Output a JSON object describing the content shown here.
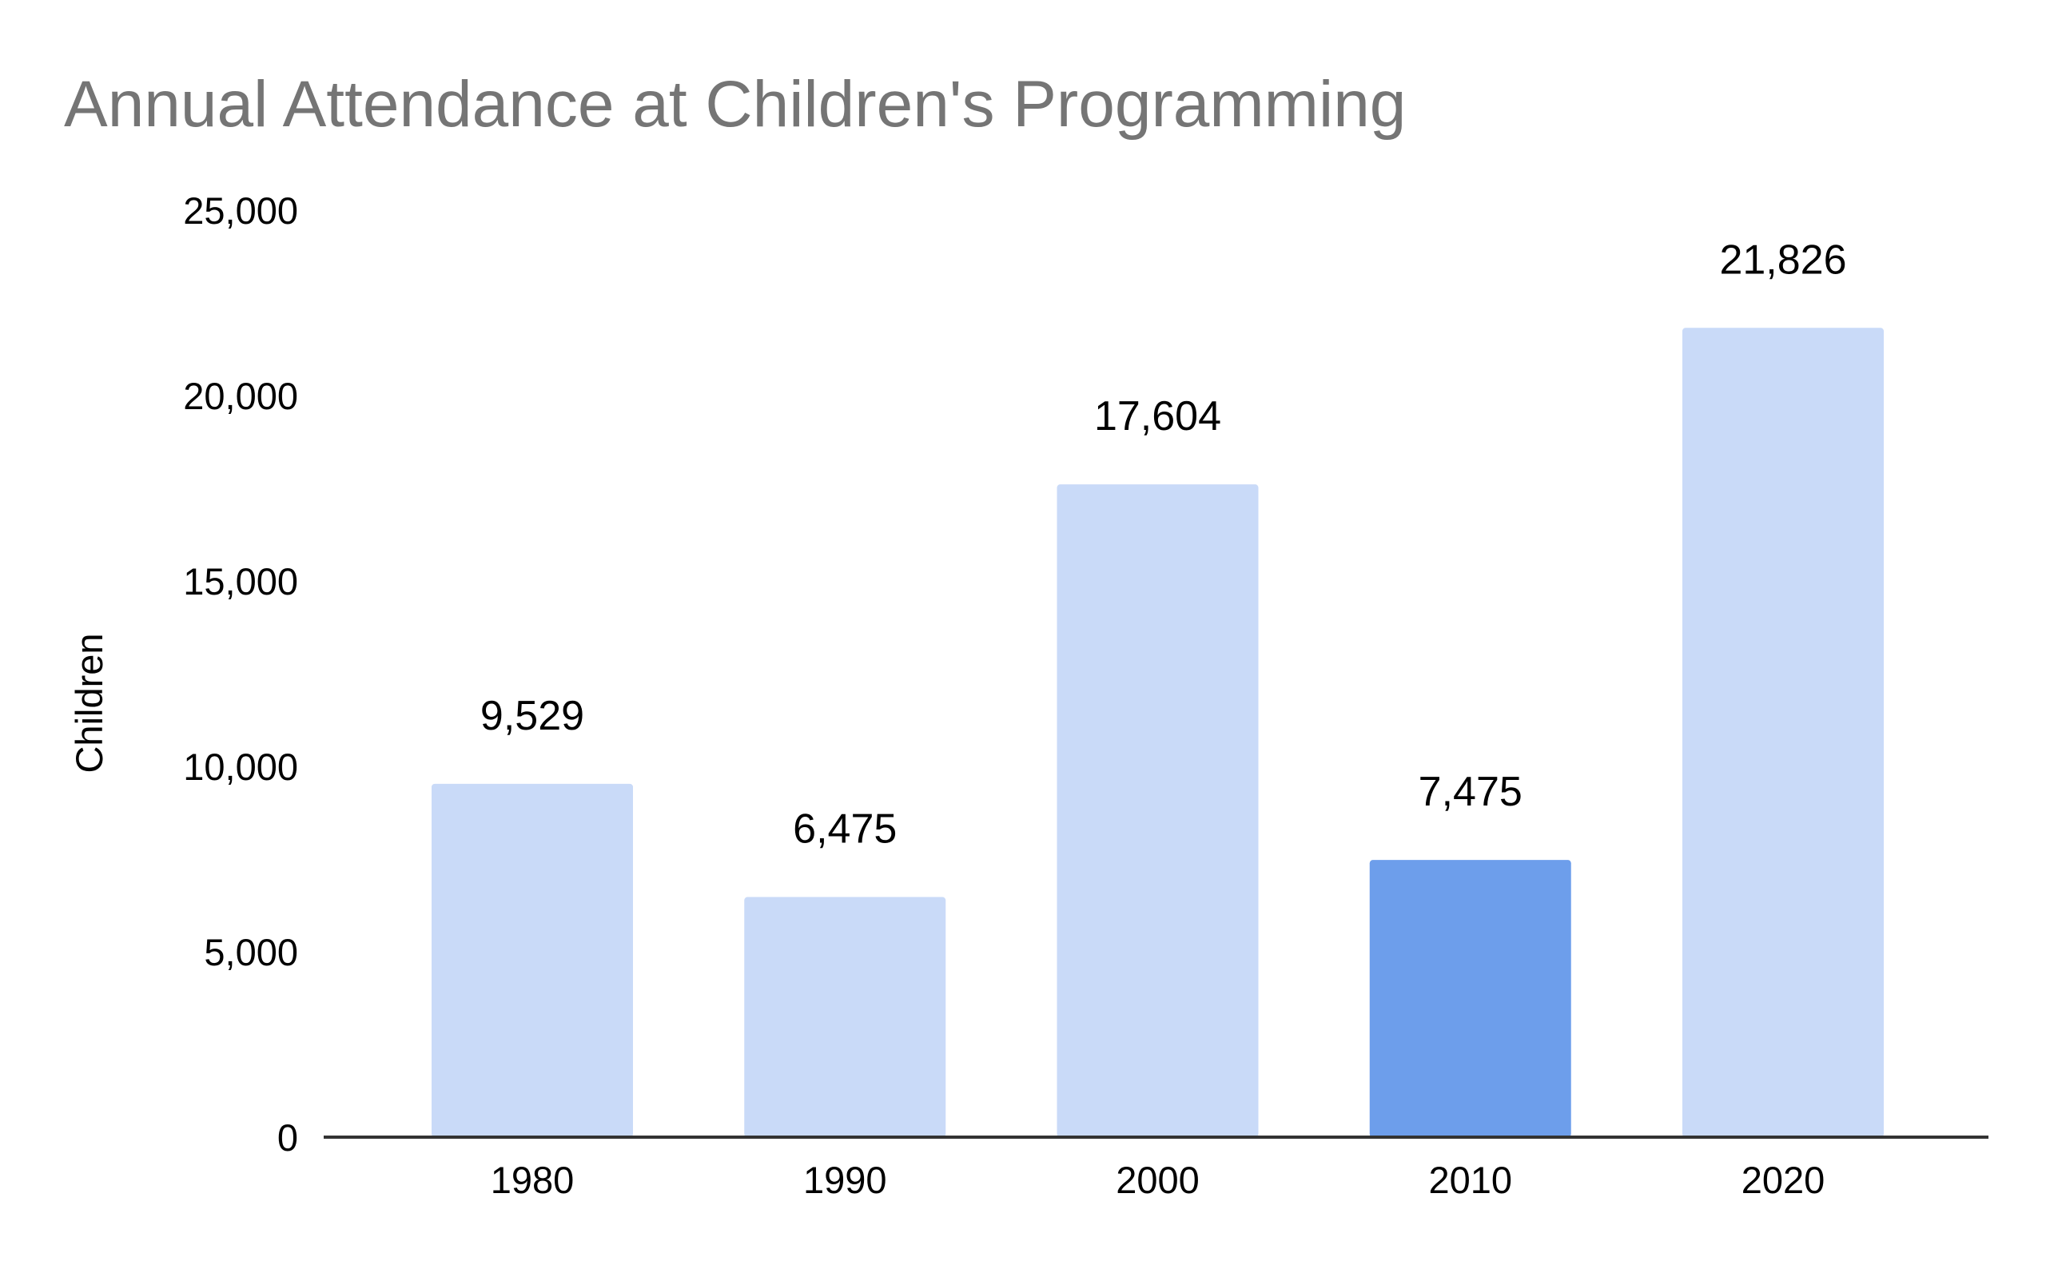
{
  "chart_data": {
    "type": "bar",
    "title": "Annual Attendance at Children's Programming",
    "xlabel": "",
    "ylabel": "Children",
    "categories": [
      "1980",
      "1990",
      "2000",
      "2010",
      "2020"
    ],
    "values": [
      9529,
      6475,
      17604,
      7475,
      21826
    ],
    "value_labels": [
      "9,529",
      "6,475",
      "17,604",
      "7,475",
      "21,826"
    ],
    "highlight_index": 3,
    "bar_color": "#c9daf8",
    "highlight_color": "#6d9eeb",
    "ylim": [
      0,
      25000
    ],
    "y_ticks": [
      0,
      5000,
      10000,
      15000,
      20000,
      25000
    ],
    "y_tick_labels": [
      "0",
      "5,000",
      "10,000",
      "15,000",
      "20,000",
      "25,000"
    ],
    "grid": false,
    "legend": "none"
  }
}
